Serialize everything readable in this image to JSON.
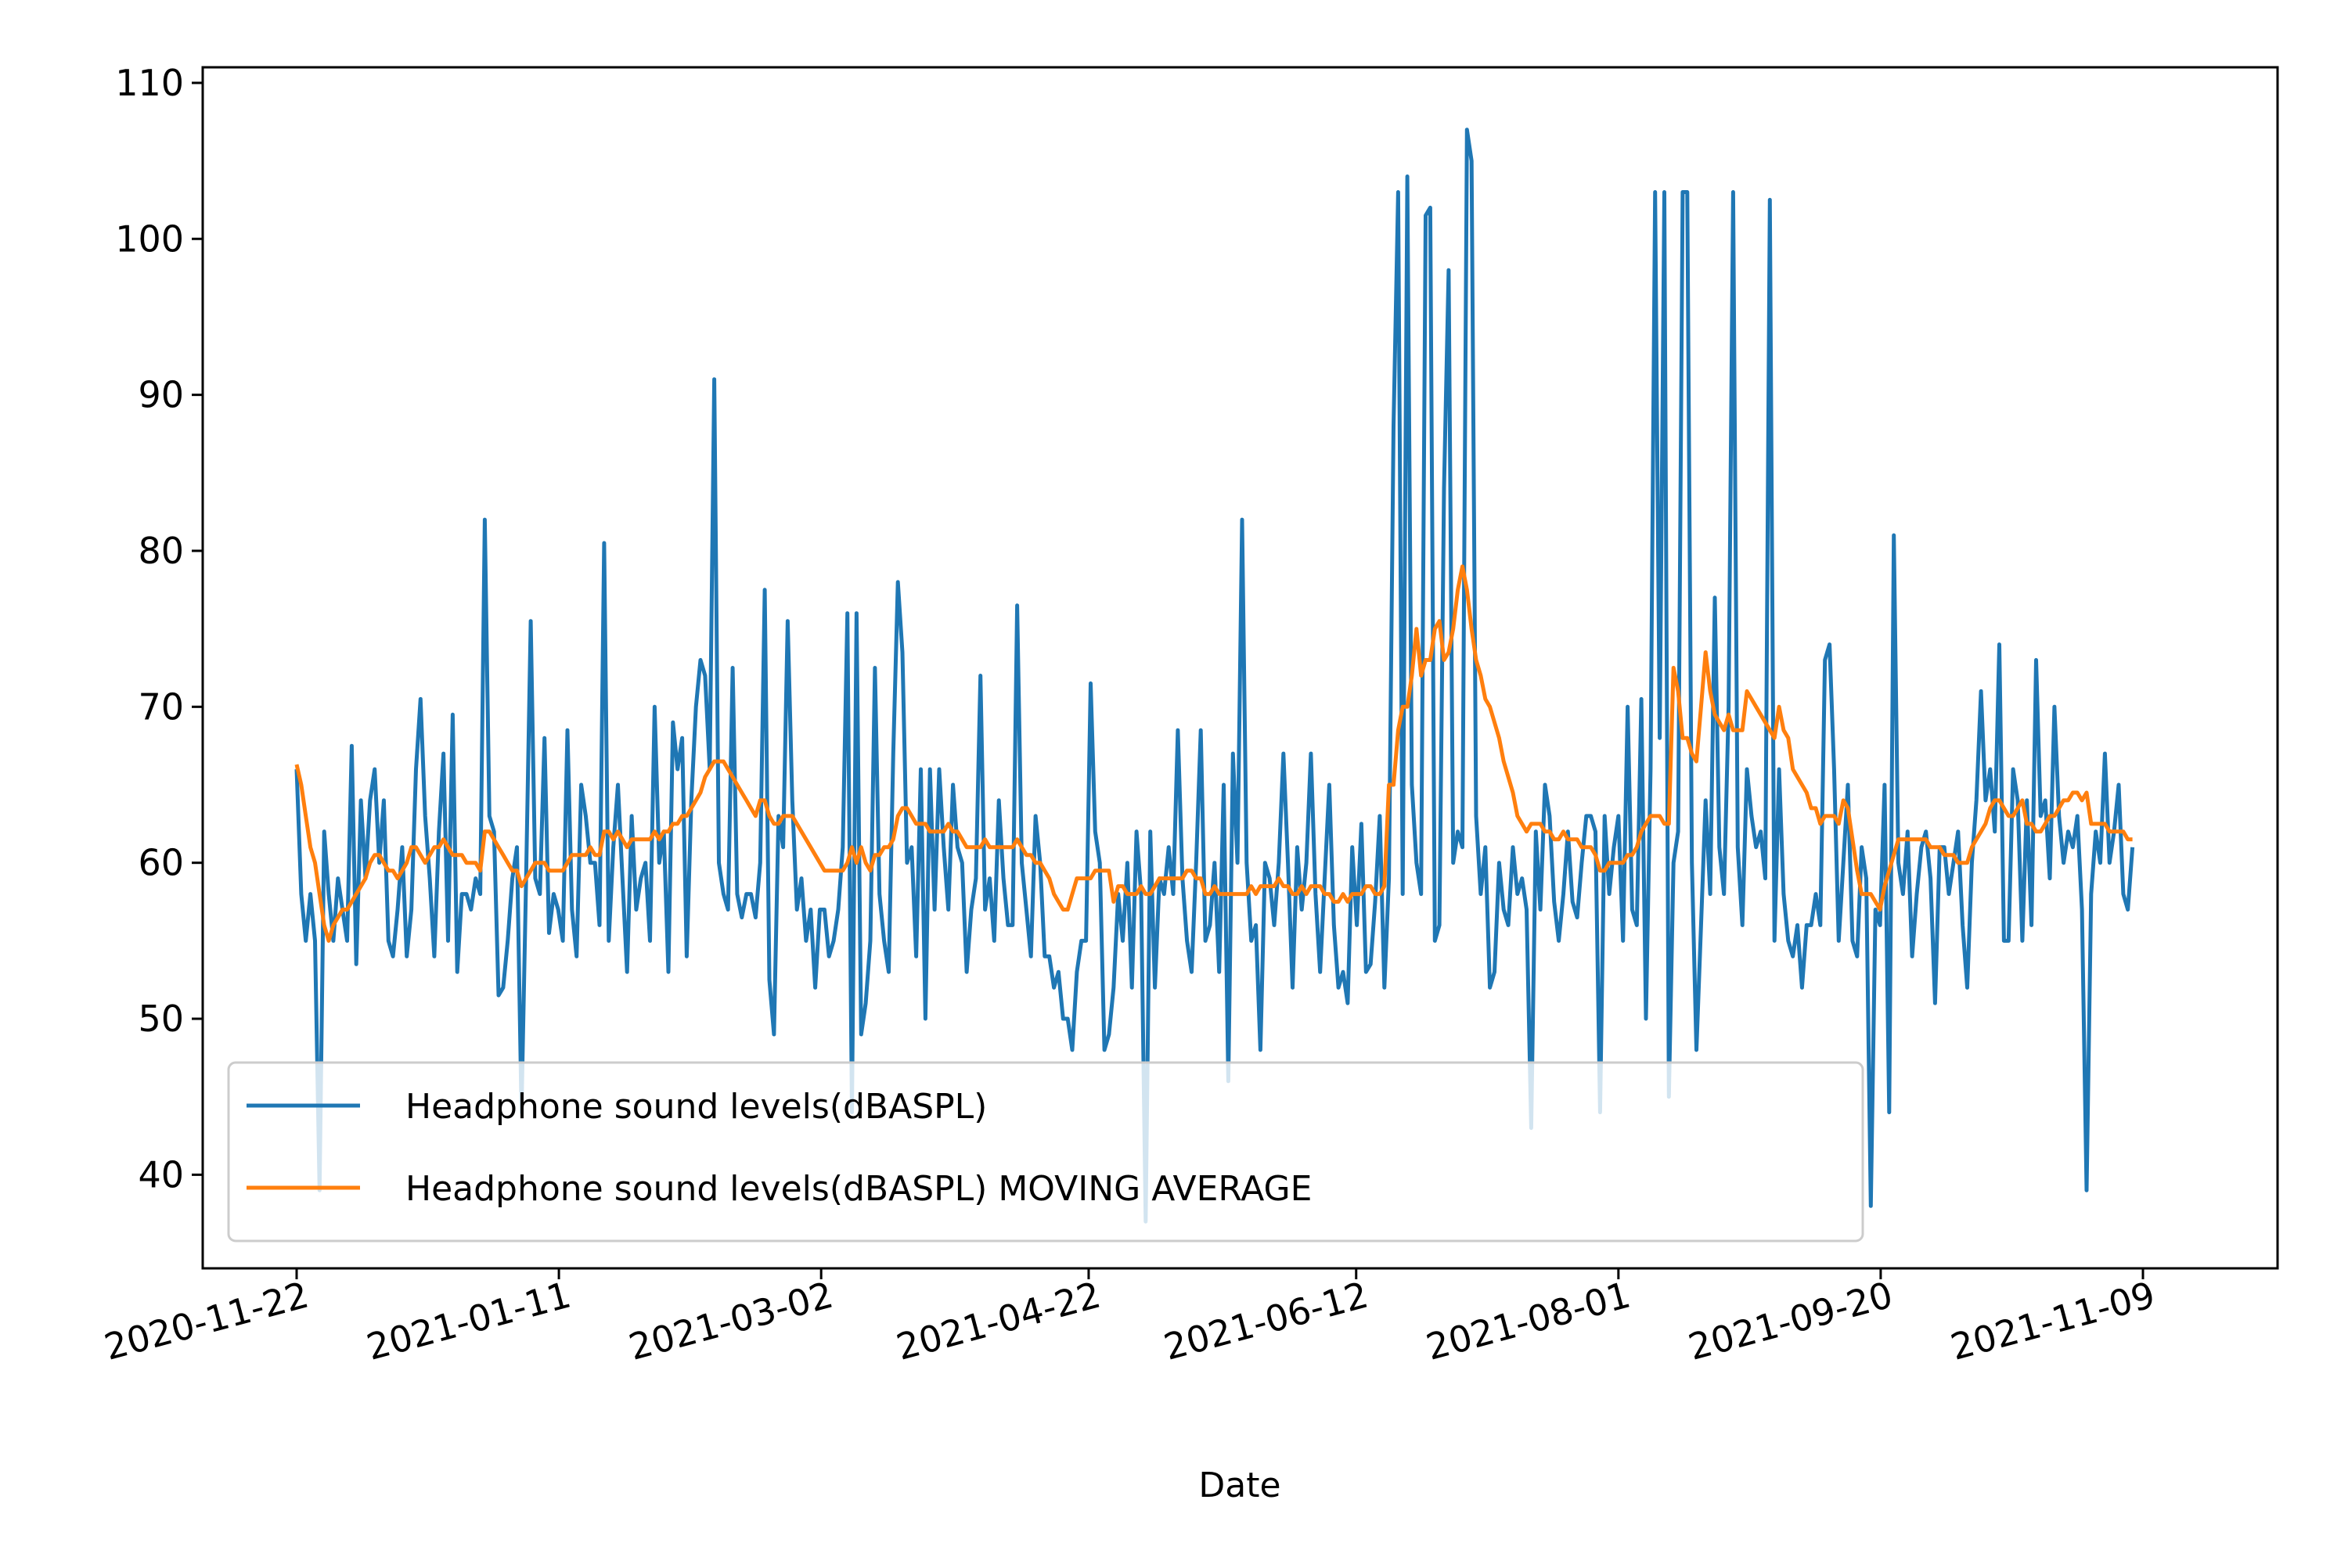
{
  "chart_data": {
    "type": "line",
    "title": "",
    "xlabel": "Date",
    "ylabel": "",
    "x_tick_labels": [
      "2020-11-22",
      "2021-01-11",
      "2021-03-02",
      "2021-04-22",
      "2021-06-12",
      "2021-08-01",
      "2021-09-20",
      "2021-11-09"
    ],
    "y_ticks": [
      40,
      50,
      60,
      70,
      80,
      90,
      100,
      110
    ],
    "xlim": [
      "2020-11-22",
      "2021-11-12"
    ],
    "ylim": [
      34,
      111
    ],
    "grid": false,
    "legend_position": "lower-left",
    "x_start": "2020-11-22",
    "x_end": "2021-11-07",
    "series": [
      {
        "name": "Headphone sound levels(dBASPL)",
        "color": "#1f77b4",
        "values": [
          66,
          58,
          55,
          58,
          55,
          39,
          62,
          58,
          55,
          59,
          57,
          55,
          67.5,
          53.5,
          64,
          59,
          64,
          66,
          60,
          64,
          55,
          54,
          57,
          61,
          54,
          57,
          66,
          70.5,
          63,
          59,
          54,
          62,
          67,
          55,
          69.5,
          53,
          58,
          58,
          57,
          59,
          58,
          82,
          63,
          62,
          51.5,
          52,
          55,
          59,
          61,
          44,
          59,
          75.5,
          59,
          58,
          68,
          55.5,
          58,
          57,
          55,
          68.5,
          57,
          54,
          65,
          63,
          60,
          60,
          56,
          80.5,
          55,
          61,
          65,
          59,
          53,
          63,
          57,
          59,
          60,
          55,
          70,
          60,
          62,
          53,
          69,
          66,
          68,
          54,
          64,
          70,
          73,
          72,
          66,
          91,
          60,
          58,
          57,
          72.5,
          58,
          56.5,
          58,
          58,
          56.5,
          60,
          77.5,
          52.5,
          49,
          63,
          61,
          75.5,
          64,
          57,
          59,
          55,
          57,
          52,
          57,
          57,
          54,
          55,
          57,
          61,
          76,
          44,
          76,
          49,
          51,
          55,
          72.5,
          58,
          55,
          53,
          67,
          78,
          73.5,
          60,
          61,
          54,
          66,
          50,
          66,
          57,
          66,
          61,
          57,
          65,
          61,
          60,
          53,
          57,
          59,
          72,
          57,
          59,
          55,
          64,
          59,
          56,
          56,
          76.5,
          60,
          57,
          54,
          63,
          60,
          54,
          54,
          52,
          53,
          50,
          50,
          48,
          53,
          55,
          55,
          71.5,
          62,
          60,
          48,
          49,
          52,
          58,
          55,
          60,
          52,
          62,
          58,
          37,
          62,
          52,
          59,
          58,
          61,
          58,
          68.5,
          59,
          55,
          53,
          60,
          68.5,
          55,
          56,
          60,
          53,
          65,
          46,
          67,
          60,
          82,
          60,
          55,
          56,
          48,
          60,
          59,
          56,
          60,
          67,
          60,
          52,
          61,
          57,
          60,
          67,
          58,
          53,
          59,
          65,
          56,
          52,
          53,
          51,
          61,
          56,
          62.5,
          53,
          53.5,
          57.5,
          63,
          52,
          59,
          88,
          103,
          58,
          104,
          65,
          60,
          58,
          101.5,
          102,
          55,
          56,
          84,
          98,
          60,
          62,
          61,
          107,
          105,
          63,
          58,
          61,
          52,
          53,
          60,
          57,
          56,
          61,
          58,
          59,
          57,
          43,
          62,
          57,
          65,
          63,
          57.5,
          55,
          58,
          62,
          57.5,
          56.5,
          60,
          63,
          63,
          62,
          44,
          63,
          58,
          61,
          63,
          55,
          70,
          57,
          56,
          70.5,
          50,
          66,
          103,
          68,
          103,
          45,
          60,
          62,
          103,
          103,
          60,
          48,
          56,
          64,
          58,
          77,
          61,
          58,
          70,
          103,
          61,
          56,
          66,
          63,
          61,
          62,
          59,
          102.5,
          55,
          66,
          58,
          55,
          54,
          56,
          52,
          56,
          56,
          58,
          56,
          73,
          74,
          66,
          55,
          60,
          65,
          55,
          54,
          61,
          59,
          38,
          57,
          56,
          65,
          44,
          81,
          60,
          58,
          62,
          54,
          58,
          61,
          62,
          59,
          51,
          61,
          61,
          58,
          60,
          62,
          56,
          52,
          60,
          64,
          71,
          64,
          66,
          62,
          74,
          55,
          55,
          66,
          64,
          55,
          64,
          56,
          73,
          63,
          64,
          59,
          70,
          63,
          60,
          62,
          61,
          63,
          57,
          39,
          58,
          62,
          60,
          67,
          60,
          62,
          65,
          58,
          57,
          61
        ]
      },
      {
        "name": "Headphone sound levels(dBASPL) MOVING AVERAGE",
        "color": "#ff7f0e",
        "values": [
          66.3,
          65,
          63,
          61,
          60,
          58,
          56,
          55,
          56,
          56.5,
          57,
          57,
          57.5,
          58,
          58.5,
          59,
          60,
          60.5,
          60.5,
          60,
          59.5,
          59.5,
          59,
          59.5,
          60,
          61,
          61,
          60.5,
          60,
          60.5,
          61,
          61,
          61.5,
          61,
          60.5,
          60.5,
          60.5,
          60,
          60,
          60,
          59.5,
          62,
          62,
          61.5,
          61,
          60.5,
          60,
          59.5,
          59.5,
          58.5,
          59,
          59.5,
          60,
          60,
          60,
          59.5,
          59.5,
          59.5,
          59.5,
          60,
          60.5,
          60.5,
          60.5,
          60.5,
          61,
          60.5,
          60.5,
          62,
          62,
          61.5,
          62,
          61.5,
          61,
          61.5,
          61.5,
          61.5,
          61.5,
          61.5,
          62,
          61.5,
          62,
          62,
          62.5,
          62.5,
          63,
          63,
          63.5,
          64,
          64.5,
          65.5,
          66,
          66.5,
          66.5,
          66.5,
          66,
          65.5,
          65,
          64.5,
          64,
          63.5,
          63,
          64,
          64,
          63,
          62.5,
          62.5,
          63,
          63,
          63,
          62.5,
          62,
          61.5,
          61,
          60.5,
          60,
          59.5,
          59.5,
          59.5,
          59.5,
          59.5,
          60,
          61,
          60,
          61,
          60,
          59.5,
          60.5,
          60.5,
          61,
          61,
          61.5,
          63,
          63.5,
          63.5,
          63,
          62.5,
          62.5,
          62.5,
          62,
          62,
          62,
          62,
          62.5,
          62,
          62,
          61.5,
          61,
          61,
          61,
          61,
          61.5,
          61,
          61,
          61,
          61,
          61,
          61,
          61.5,
          61,
          60.5,
          60.5,
          60,
          60,
          59.5,
          59,
          58,
          57.5,
          57,
          57,
          58,
          59,
          59,
          59,
          59,
          59.5,
          59.5,
          59.5,
          59.5,
          57.5,
          58.5,
          58.5,
          58,
          58,
          58,
          58.5,
          58,
          58,
          58.5,
          59,
          59,
          59,
          59,
          59,
          59,
          59.5,
          59.5,
          59,
          59,
          58,
          58,
          58.5,
          58,
          58,
          58,
          58,
          58,
          58,
          58,
          58.5,
          58,
          58.5,
          58.5,
          58.5,
          58.5,
          59,
          58.5,
          58.5,
          58,
          58,
          58.5,
          58,
          58.5,
          58.5,
          58.5,
          58,
          58,
          57.5,
          57.5,
          58,
          57.5,
          58,
          58,
          58,
          58.5,
          58.5,
          58,
          58,
          58.5,
          65,
          65,
          68.5,
          70,
          70,
          72,
          75,
          72,
          73,
          73,
          75,
          75.5,
          73,
          73.5,
          75,
          77.5,
          79,
          77.5,
          75,
          73,
          72,
          70.5,
          70,
          69,
          68,
          66.5,
          65.5,
          64.5,
          63,
          62.5,
          62,
          62.5,
          62.5,
          62.5,
          62,
          62,
          61.5,
          61.5,
          62,
          61.5,
          61.5,
          61.5,
          61,
          61,
          61,
          60.5,
          59.5,
          59.5,
          60,
          60,
          60,
          60,
          60.5,
          60.5,
          61,
          62,
          62.5,
          63,
          63,
          63,
          62.5,
          62.5,
          72.5,
          71,
          68,
          68,
          67,
          66.5,
          70,
          73.5,
          71,
          69.5,
          69,
          68.5,
          69.5,
          68.5,
          68.5,
          68.5,
          71,
          70.5,
          70,
          69.5,
          69,
          68.5,
          68,
          70,
          68.5,
          68,
          66,
          65.5,
          65,
          64.5,
          63.5,
          63.5,
          62.5,
          63,
          63,
          63,
          62.5,
          64,
          63.5,
          61.5,
          59.5,
          58,
          58,
          58,
          57.5,
          57,
          58.5,
          59.5,
          60.5,
          61.5,
          61.5,
          61.5,
          61.5,
          61.5,
          61.5,
          61.5,
          61,
          61,
          61,
          60.5,
          60.5,
          60.5,
          60,
          60,
          60,
          61,
          61.5,
          62,
          62.5,
          63.5,
          64,
          64,
          63.5,
          63,
          63,
          63.5,
          64,
          62.5,
          62.5,
          62,
          62,
          62.5,
          63,
          63,
          63.5,
          64,
          64,
          64.5,
          64.5,
          64,
          64.5,
          62.5,
          62.5,
          62.5,
          62.5,
          62,
          62,
          62,
          62,
          61.5,
          61.5
        ]
      }
    ]
  }
}
